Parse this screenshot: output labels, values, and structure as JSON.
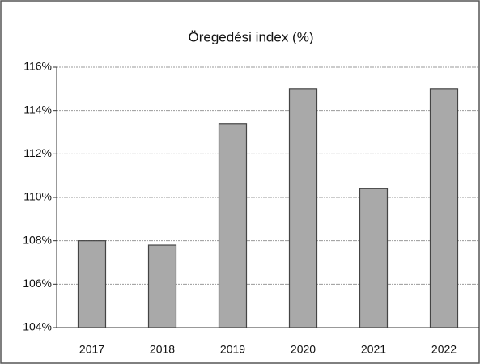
{
  "chart_data": {
    "type": "bar",
    "title": "Öregedési index (%)",
    "categories": [
      "2017",
      "2018",
      "2019",
      "2020",
      "2021",
      "2022"
    ],
    "values": [
      108.0,
      107.8,
      113.4,
      115.0,
      110.4,
      115.0
    ],
    "color": "#a9a9a9",
    "ylim": [
      104,
      116
    ],
    "yticks": [
      {
        "value": 104,
        "label": "104%"
      },
      {
        "value": 106,
        "label": "106%"
      },
      {
        "value": 108,
        "label": "108%"
      },
      {
        "value": 110,
        "label": "110%"
      },
      {
        "value": 112,
        "label": "112%"
      },
      {
        "value": 114,
        "label": "114%"
      },
      {
        "value": 116,
        "label": "116%"
      }
    ],
    "grid": true
  }
}
